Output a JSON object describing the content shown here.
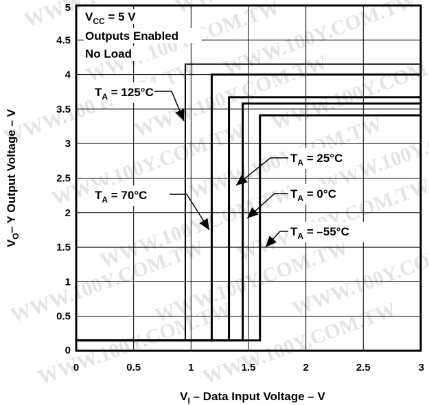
{
  "chart_data": {
    "type": "line",
    "xlabel": {
      "main": "V",
      "sub": "I",
      "rest": " – Data Input Voltage – V"
    },
    "ylabel": {
      "main": "V",
      "sub": "O",
      "rest": "– Y Output Voltage – V"
    },
    "xlim": [
      0,
      3
    ],
    "ylim": [
      0,
      5
    ],
    "x_ticks": [
      0,
      0.5,
      1,
      1.5,
      2,
      2.5,
      3
    ],
    "x_tick_labels": [
      "0",
      "0.5",
      "1",
      "1.5",
      "2",
      "2.5",
      "3"
    ],
    "y_ticks": [
      0,
      0.5,
      1,
      1.5,
      2,
      2.5,
      3,
      3.5,
      4,
      4.5,
      5
    ],
    "y_tick_labels": [
      "0",
      "0.5",
      "1",
      "1.5",
      "2",
      "2.5",
      "3",
      "3.5",
      "4",
      "4.5",
      "5"
    ],
    "grid": true,
    "conditions": [
      {
        "main": "V",
        "sub": "CC",
        "rest": " = 5 V"
      },
      {
        "main": "Outputs Enabled",
        "sub": "",
        "rest": ""
      },
      {
        "main": "No Load",
        "sub": "",
        "rest": ""
      }
    ],
    "series": [
      {
        "label_main": "T",
        "label_sub": "A",
        "label_rest": " = 125°C",
        "threshold": 0.95,
        "low": 0.15,
        "high": 4.15
      },
      {
        "label_main": "T",
        "label_sub": "A",
        "label_rest": " = 70°C",
        "threshold": 1.18,
        "low": 0.15,
        "high": 4.0
      },
      {
        "label_main": "T",
        "label_sub": "A",
        "label_rest": " = 25°C",
        "threshold": 1.33,
        "low": 0.15,
        "high": 3.67
      },
      {
        "label_main": "T",
        "label_sub": "A",
        "label_rest": " = 0°C",
        "threshold": 1.45,
        "low": 0.15,
        "high": 3.58
      },
      {
        "label_main": "T",
        "label_sub": "A",
        "label_rest": " = –55°C",
        "threshold": 1.6,
        "low": 0.15,
        "high": 3.41
      }
    ],
    "watermark": "WWW.100Y.COM.TW"
  }
}
